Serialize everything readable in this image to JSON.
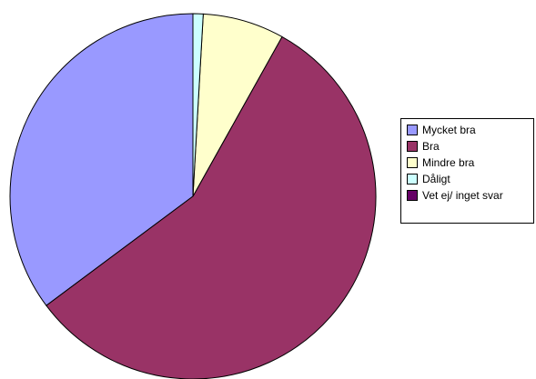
{
  "chart_data": {
    "type": "pie",
    "categories": [
      "Mycket bra",
      "Bra",
      "Mindre bra",
      "Dåligt",
      "Vet ej/ inget svar"
    ],
    "values": [
      35.2,
      56.7,
      7.2,
      0.9,
      0.0
    ],
    "colors": [
      "#9999ff",
      "#993366",
      "#ffffcc",
      "#ccffff",
      "#660066"
    ],
    "start_angle_deg": 0,
    "direction": "counterclockwise-from-top",
    "legend_position": "right",
    "title": ""
  }
}
